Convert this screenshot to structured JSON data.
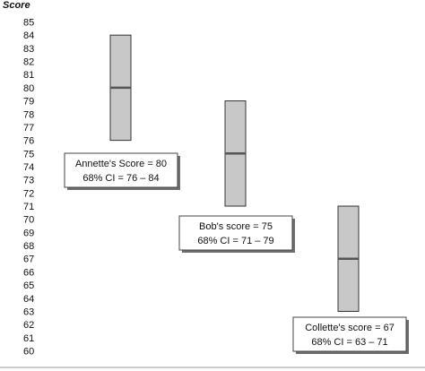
{
  "chart_data": {
    "type": "bar",
    "ylabel": "Score",
    "ylim": [
      60,
      85
    ],
    "grid": false,
    "y_ticks": [
      85,
      84,
      83,
      82,
      81,
      80,
      79,
      78,
      77,
      76,
      75,
      74,
      73,
      72,
      71,
      70,
      69,
      68,
      67,
      66,
      65,
      64,
      63,
      62,
      61,
      60
    ],
    "series": [
      {
        "score": 80,
        "ci_low": 76,
        "ci_high": 84,
        "label_line1": "Annette's Score = 80",
        "label_line2": "68% CI = 76 – 84"
      },
      {
        "score": 75,
        "ci_low": 71,
        "ci_high": 79,
        "label_line1": "Bob's score = 75",
        "label_line2": "68% CI = 71 – 79"
      },
      {
        "score": 67,
        "ci_low": 63,
        "ci_high": 71,
        "label_line1": "Collette's score = 67",
        "label_line2": "68% CI = 63 – 71"
      }
    ],
    "colors": {
      "bar_fill": "#c8c8c8",
      "bar_stroke": "#333333",
      "marker": "#555555",
      "box_stroke": "#444444",
      "axis_line": "#999999"
    }
  }
}
